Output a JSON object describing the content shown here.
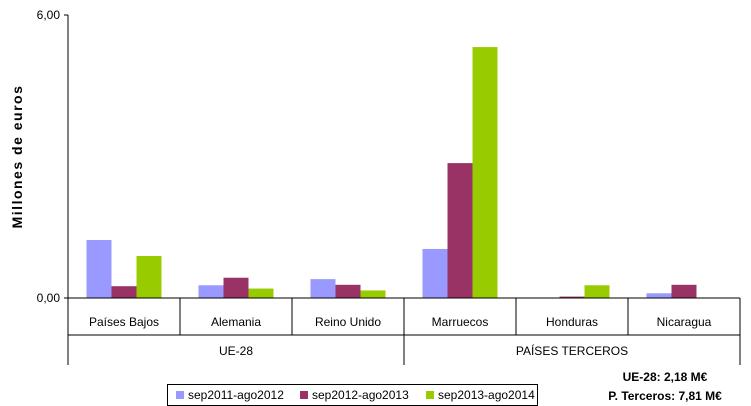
{
  "chart_data": {
    "type": "bar",
    "ylabel": "Millones de euros",
    "ylim": [
      0,
      6
    ],
    "yticks": [
      "0,00",
      "6,00"
    ],
    "categories": [
      "Países Bajos",
      "Alemania",
      "Reino Unido",
      "Marruecos",
      "Honduras",
      "Nicaragua"
    ],
    "groups": [
      {
        "label": "UE-28",
        "categories": [
          "Países Bajos",
          "Alemania",
          "Reino Unido"
        ]
      },
      {
        "label": "PAÍSES TERCEROS",
        "categories": [
          "Marruecos",
          "Honduras",
          "Nicaragua"
        ]
      }
    ],
    "series": [
      {
        "name": "sep2011-ago2012",
        "color": "#9999FF",
        "values": [
          1.23,
          0.27,
          0.4,
          1.04,
          0.0,
          0.1
        ]
      },
      {
        "name": "sep2012-ago2013",
        "color": "#993366",
        "values": [
          0.25,
          0.43,
          0.28,
          2.86,
          0.03,
          0.28
        ]
      },
      {
        "name": "sep2013-ago2014",
        "color": "#99CC00",
        "values": [
          0.89,
          0.2,
          0.16,
          5.32,
          0.27,
          0.0
        ]
      }
    ],
    "legend_position": "bottom"
  },
  "notes": {
    "ue28": "UE-28: 2,18 M€",
    "terceros": "P. Terceros: 7,81 M€"
  }
}
